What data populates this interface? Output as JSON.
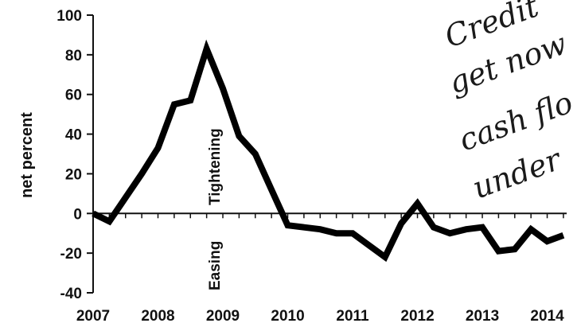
{
  "chart_data": {
    "type": "line",
    "title": "",
    "xlabel": "",
    "ylabel": "net percent",
    "ylim": [
      -40,
      100
    ],
    "xlim": [
      2007,
      2014.3
    ],
    "yticks": [
      -40,
      -20,
      0,
      20,
      40,
      60,
      80,
      100
    ],
    "xticks": [
      "2007",
      "2008",
      "2009",
      "2010",
      "2011",
      "2012",
      "2013",
      "2014"
    ],
    "grid": false,
    "annotations": [
      "Tightening",
      "Easing"
    ],
    "series": [
      {
        "color": "#000000",
        "x": [
          2007.0,
          2007.25,
          2007.5,
          2007.75,
          2008.0,
          2008.25,
          2008.5,
          2008.75,
          2009.0,
          2009.25,
          2009.5,
          2009.75,
          2010.0,
          2010.25,
          2010.5,
          2010.75,
          2011.0,
          2011.25,
          2011.5,
          2011.75,
          2012.0,
          2012.25,
          2012.5,
          2012.75,
          2013.0,
          2013.25,
          2013.5,
          2013.75,
          2014.0,
          2014.25
        ],
        "values": [
          0,
          -4,
          8,
          20,
          33,
          55,
          57,
          83,
          63,
          39,
          30,
          12,
          -6,
          -7,
          -8,
          -10,
          -10,
          -16,
          -22,
          -5,
          5,
          -7,
          -10,
          -8,
          -7,
          -19,
          -18,
          -8,
          -14,
          -11
        ]
      }
    ]
  },
  "handwriting": {
    "lines": [
      "Credit",
      "get now",
      "cash flo",
      "under"
    ]
  }
}
